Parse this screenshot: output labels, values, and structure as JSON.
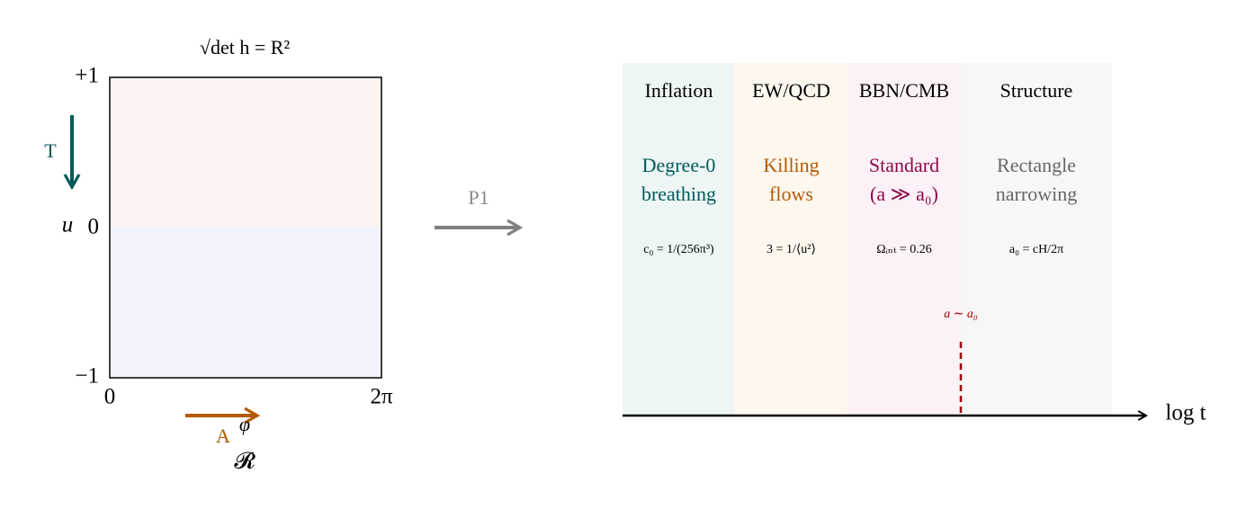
{
  "left_panel": {
    "title": "√det h = R²",
    "y_labels": [
      "+1",
      "u",
      "0",
      "−1"
    ],
    "x_labels": [
      "0",
      "2π"
    ],
    "arrows": [
      {
        "label": "T"
      },
      {
        "label": "A"
      }
    ],
    "phi": "φ",
    "r_label": "𝓡"
  },
  "transition": {
    "label": "P1"
  },
  "right_panel": {
    "eras": [
      {
        "name": "Inflation",
        "description": [
          "Degree-0",
          "breathing"
        ],
        "formula": "c₀ = 1/(256π³)"
      },
      {
        "name": "EW/QCD",
        "description": [
          "Killing",
          "flows"
        ],
        "formula": "3 = 1/⟨u²⟩"
      },
      {
        "name": "BBN/CMB",
        "description": [
          "Standard",
          "(a ≫ a₀)"
        ],
        "formula": "Ωᵢₙₜ = 0.26"
      },
      {
        "name": "Structure",
        "description": [
          "Rectangle",
          "narrowing"
        ],
        "formula": "a₀ = cH/2π"
      }
    ],
    "marker": "a ∼ a₀",
    "axis_label": "log t"
  }
}
